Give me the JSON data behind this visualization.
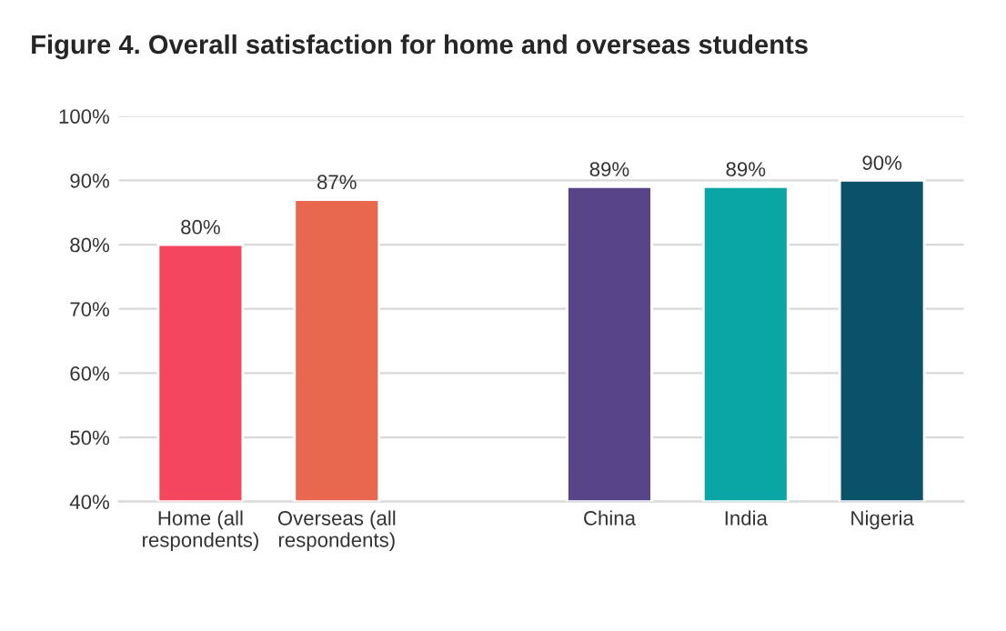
{
  "chart_data": {
    "type": "bar",
    "title": "Figure 4. Overall satisfaction for home and overseas students",
    "categories": [
      "Home (all\nrespondents)",
      "Overseas (all\nrespondents)",
      null,
      "China",
      "India",
      "Nigeria"
    ],
    "values": [
      80,
      87,
      null,
      89,
      89,
      90
    ],
    "colors": [
      "#f4475f",
      "#e8684f",
      null,
      "#574489",
      "#0aa6a6",
      "#0b5169"
    ],
    "ylim": [
      40,
      100
    ],
    "yticks": [
      {
        "value": 40,
        "label": "40%"
      },
      {
        "value": 50,
        "label": "50%"
      },
      {
        "value": 60,
        "label": "60%"
      },
      {
        "value": 70,
        "label": "70%"
      },
      {
        "value": 80,
        "label": "80%"
      },
      {
        "value": 90,
        "label": "90%"
      },
      {
        "value": 100,
        "label": "100%"
      }
    ],
    "value_labels": [
      "80%",
      "87%",
      null,
      "89%",
      "89%",
      "90%"
    ],
    "grid": "y"
  }
}
